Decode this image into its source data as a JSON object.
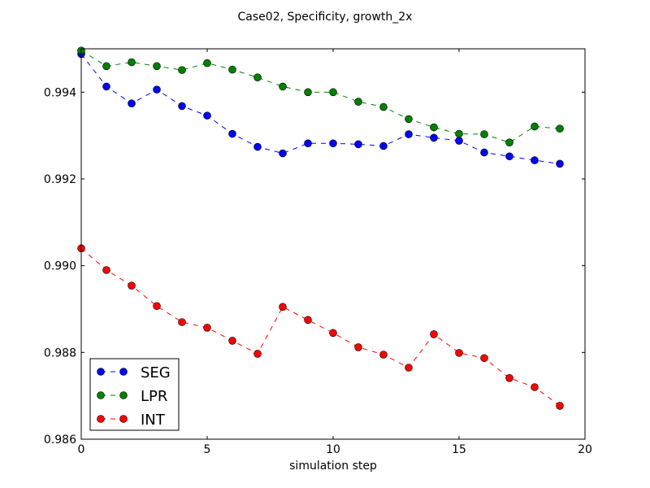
{
  "chart_data": {
    "type": "line",
    "title": "Case02, Specificity, growth_2x",
    "xlabel": "simulation step",
    "ylabel": "",
    "xlim": [
      0,
      20
    ],
    "ylim": [
      0.986,
      0.995
    ],
    "xticks": [
      0,
      5,
      10,
      15,
      20
    ],
    "xtick_labels": [
      "0",
      "5",
      "10",
      "15",
      "20"
    ],
    "yticks": [
      0.986,
      0.988,
      0.99,
      0.992,
      0.994
    ],
    "ytick_labels": [
      "0.986",
      "0.988",
      "0.990",
      "0.992",
      "0.994"
    ],
    "grid": false,
    "legend_position": "lower-left",
    "x": [
      0,
      1,
      2,
      3,
      4,
      5,
      6,
      7,
      8,
      9,
      10,
      11,
      12,
      13,
      14,
      15,
      16,
      17,
      18,
      19
    ],
    "series": [
      {
        "name": "SEG",
        "color": "#0000ff",
        "linestyle": "dashed",
        "marker": "circle",
        "values": [
          0.99488,
          0.99413,
          0.99374,
          0.99406,
          0.99368,
          0.99346,
          0.99304,
          0.99274,
          0.99259,
          0.99282,
          0.99282,
          0.9928,
          0.99276,
          0.99303,
          0.99295,
          0.99288,
          0.99261,
          0.99252,
          0.99243,
          0.99235
        ]
      },
      {
        "name": "LPR",
        "color": "#008000",
        "linestyle": "dashed",
        "marker": "circle",
        "values": [
          0.99496,
          0.9946,
          0.99469,
          0.9946,
          0.99451,
          0.99467,
          0.99452,
          0.99434,
          0.99413,
          0.994,
          0.994,
          0.99378,
          0.99366,
          0.99338,
          0.99319,
          0.99304,
          0.99303,
          0.99284,
          0.99321,
          0.99316
        ]
      },
      {
        "name": "INT",
        "color": "#ff0000",
        "linestyle": "dashed",
        "marker": "circle",
        "values": [
          0.9904,
          0.9899,
          0.98954,
          0.98907,
          0.9887,
          0.98857,
          0.98827,
          0.98797,
          0.98905,
          0.98875,
          0.98845,
          0.98812,
          0.98795,
          0.98765,
          0.98842,
          0.98799,
          0.98787,
          0.98741,
          0.9872,
          0.98677
        ]
      }
    ]
  }
}
